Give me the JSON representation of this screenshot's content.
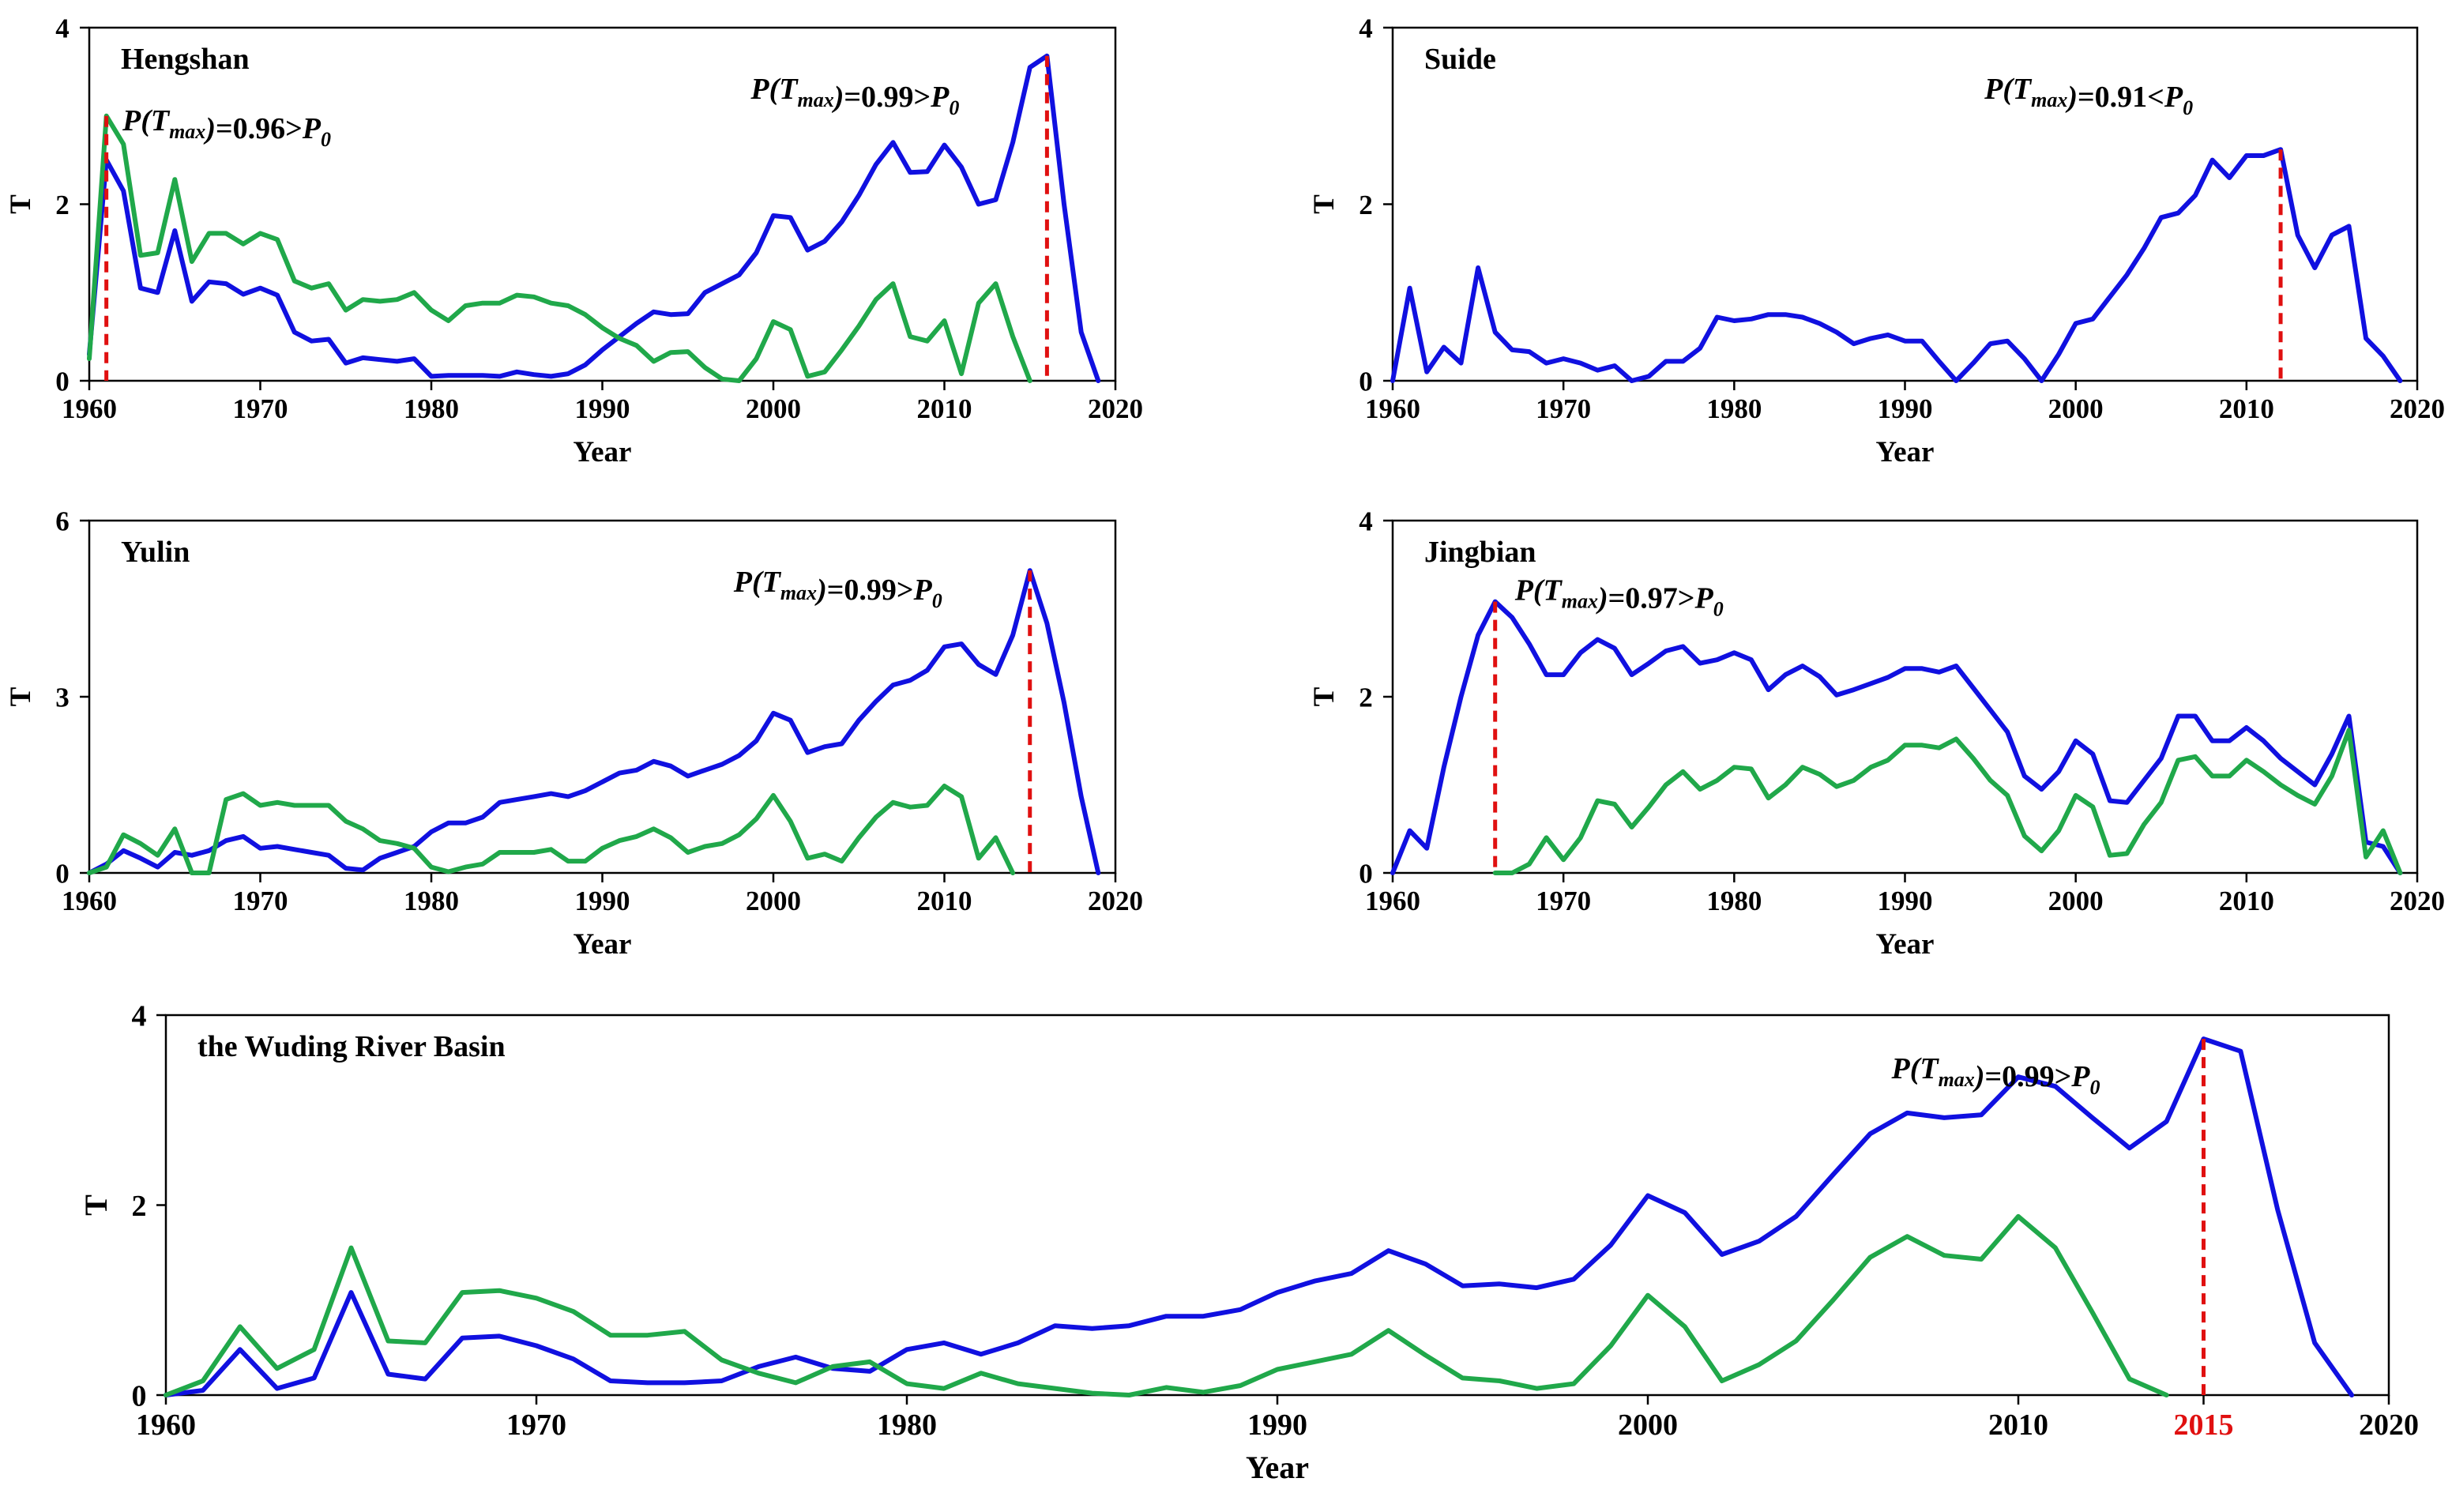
{
  "chart_data": [
    {
      "type": "line",
      "title": "Hengshan",
      "xlabel": "Year",
      "ylabel": "T",
      "xlim": [
        1960,
        2020
      ],
      "ylim": [
        0,
        4
      ],
      "xticks": [
        1960,
        1970,
        1980,
        1990,
        2000,
        2010,
        2020
      ],
      "yticks": [
        0,
        2,
        4
      ],
      "series": [
        {
          "name": "blue",
          "color": "#1010e0",
          "start": 1960,
          "values": [
            0.3,
            2.5,
            2.15,
            1.05,
            1.0,
            1.7,
            0.9,
            1.12,
            1.1,
            0.98,
            1.05,
            0.97,
            0.55,
            0.45,
            0.47,
            0.2,
            0.26,
            0.24,
            0.22,
            0.25,
            0.05,
            0.06,
            0.06,
            0.06,
            0.05,
            0.1,
            0.07,
            0.05,
            0.08,
            0.18,
            0.35,
            0.5,
            0.65,
            0.78,
            0.75,
            0.76,
            1.0,
            1.1,
            1.2,
            1.45,
            1.87,
            1.85,
            1.48,
            1.58,
            1.8,
            2.1,
            2.45,
            2.7,
            2.36,
            2.37,
            2.67,
            2.42,
            2.0,
            2.05,
            2.7,
            3.55,
            3.68,
            2.0,
            0.55,
            0.0
          ]
        },
        {
          "name": "green",
          "color": "#20a84a",
          "start": 1960,
          "values": [
            0.25,
            3.0,
            2.68,
            1.42,
            1.45,
            2.28,
            1.35,
            1.67,
            1.67,
            1.55,
            1.67,
            1.6,
            1.13,
            1.05,
            1.1,
            0.8,
            0.92,
            0.9,
            0.92,
            1.0,
            0.8,
            0.68,
            0.85,
            0.88,
            0.88,
            0.97,
            0.95,
            0.88,
            0.85,
            0.75,
            0.6,
            0.48,
            0.4,
            0.22,
            0.32,
            0.33,
            0.15,
            0.02,
            0.0,
            0.25,
            0.67,
            0.58,
            0.05,
            0.1,
            0.35,
            0.62,
            0.92,
            1.1,
            0.5,
            0.45,
            0.68,
            0.08,
            0.88,
            1.1,
            0.5,
            0.0
          ]
        }
      ],
      "markers": [
        {
          "year": 1961,
          "value": 3.0,
          "label": "=0.96>",
          "text": "P(Tmax)=0.96>P0"
        },
        {
          "year": 2016,
          "value": 3.68,
          "label": "=0.99>",
          "text": "P(Tmax)=0.99>P0"
        }
      ]
    },
    {
      "type": "line",
      "title": "Suide",
      "xlabel": "Year",
      "ylabel": "T",
      "xlim": [
        1960,
        2020
      ],
      "ylim": [
        0,
        4
      ],
      "xticks": [
        1960,
        1970,
        1980,
        1990,
        2000,
        2010,
        2020
      ],
      "yticks": [
        0,
        2,
        4
      ],
      "series": [
        {
          "name": "blue",
          "color": "#1010e0",
          "start": 1960,
          "values": [
            0.0,
            1.05,
            0.1,
            0.38,
            0.2,
            1.28,
            0.55,
            0.35,
            0.33,
            0.2,
            0.25,
            0.2,
            0.12,
            0.17,
            0.0,
            0.05,
            0.22,
            0.22,
            0.37,
            0.72,
            0.68,
            0.7,
            0.75,
            0.75,
            0.72,
            0.65,
            0.55,
            0.42,
            0.48,
            0.52,
            0.45,
            0.45,
            0.22,
            0.0,
            0.2,
            0.42,
            0.45,
            0.25,
            0.0,
            0.3,
            0.65,
            0.7,
            0.95,
            1.2,
            1.5,
            1.85,
            1.9,
            2.1,
            2.5,
            2.3,
            2.55,
            2.55,
            2.62,
            1.65,
            1.28,
            1.65,
            1.75,
            0.48,
            0.28,
            0.0
          ]
        }
      ],
      "markers": [
        {
          "year": 2012,
          "value": 2.62,
          "label": "=0.91<",
          "text": "P(Tmax)=0.91<P0"
        }
      ]
    },
    {
      "type": "line",
      "title": "Yulin",
      "xlabel": "Year",
      "ylabel": "T",
      "xlim": [
        1960,
        2020
      ],
      "ylim": [
        0,
        6
      ],
      "xticks": [
        1960,
        1970,
        1980,
        1990,
        2000,
        2010,
        2020
      ],
      "yticks": [
        0,
        3,
        6
      ],
      "series": [
        {
          "name": "blue",
          "color": "#1010e0",
          "start": 1960,
          "values": [
            0.0,
            0.15,
            0.38,
            0.25,
            0.1,
            0.35,
            0.3,
            0.38,
            0.55,
            0.62,
            0.42,
            0.45,
            0.4,
            0.35,
            0.3,
            0.08,
            0.05,
            0.25,
            0.35,
            0.45,
            0.7,
            0.85,
            0.85,
            0.95,
            1.2,
            1.25,
            1.3,
            1.35,
            1.3,
            1.4,
            1.55,
            1.7,
            1.75,
            1.9,
            1.82,
            1.65,
            1.75,
            1.85,
            2.0,
            2.25,
            2.72,
            2.6,
            2.05,
            2.15,
            2.2,
            2.6,
            2.92,
            3.2,
            3.28,
            3.45,
            3.85,
            3.9,
            3.55,
            3.38,
            4.05,
            5.15,
            4.25,
            2.9,
            1.3,
            0.0
          ]
        },
        {
          "name": "green",
          "color": "#20a84a",
          "start": 1960,
          "values": [
            0.0,
            0.1,
            0.65,
            0.5,
            0.3,
            0.75,
            0.0,
            0.0,
            1.25,
            1.35,
            1.15,
            1.2,
            1.15,
            1.15,
            1.15,
            0.88,
            0.75,
            0.55,
            0.5,
            0.42,
            0.1,
            0.02,
            0.1,
            0.15,
            0.35,
            0.35,
            0.35,
            0.4,
            0.2,
            0.2,
            0.42,
            0.55,
            0.62,
            0.75,
            0.6,
            0.35,
            0.45,
            0.5,
            0.65,
            0.92,
            1.32,
            0.88,
            0.25,
            0.32,
            0.2,
            0.6,
            0.95,
            1.2,
            1.12,
            1.15,
            1.48,
            1.3,
            0.25,
            0.6,
            0.0
          ]
        }
      ],
      "markers": [
        {
          "year": 2015,
          "value": 5.15,
          "label": "=0.99>",
          "text": "P(Tmax)=0.99>P0"
        }
      ]
    },
    {
      "type": "line",
      "title": "Jingbian",
      "xlabel": "Year",
      "ylabel": "T",
      "xlim": [
        1960,
        2020
      ],
      "ylim": [
        0,
        4
      ],
      "xticks": [
        1960,
        1970,
        1980,
        1990,
        2000,
        2010,
        2020
      ],
      "yticks": [
        0,
        2,
        4
      ],
      "series": [
        {
          "name": "blue",
          "color": "#1010e0",
          "start": 1960,
          "values": [
            0.0,
            0.48,
            0.28,
            1.2,
            2.0,
            2.7,
            3.08,
            2.9,
            2.6,
            2.25,
            2.25,
            2.5,
            2.65,
            2.55,
            2.25,
            2.38,
            2.52,
            2.57,
            2.38,
            2.42,
            2.5,
            2.42,
            2.08,
            2.25,
            2.35,
            2.23,
            2.02,
            2.08,
            2.15,
            2.22,
            2.32,
            2.32,
            2.28,
            2.35,
            2.1,
            1.85,
            1.6,
            1.1,
            0.95,
            1.15,
            1.5,
            1.35,
            0.82,
            0.8,
            1.05,
            1.3,
            1.78,
            1.78,
            1.5,
            1.5,
            1.65,
            1.5,
            1.3,
            1.15,
            1.0,
            1.35,
            1.78,
            0.35,
            0.3,
            0.0
          ]
        },
        {
          "name": "green",
          "color": "#20a84a",
          "start": 1966,
          "values": [
            0.0,
            0.0,
            0.1,
            0.4,
            0.15,
            0.4,
            0.82,
            0.78,
            0.52,
            0.75,
            1.0,
            1.15,
            0.95,
            1.05,
            1.2,
            1.18,
            0.85,
            1.0,
            1.2,
            1.12,
            0.98,
            1.05,
            1.2,
            1.28,
            1.45,
            1.45,
            1.42,
            1.52,
            1.3,
            1.05,
            0.88,
            0.42,
            0.25,
            0.48,
            0.88,
            0.75,
            0.2,
            0.22,
            0.55,
            0.8,
            1.28,
            1.32,
            1.1,
            1.1,
            1.28,
            1.15,
            1.0,
            0.88,
            0.78,
            1.1,
            1.62,
            0.18,
            0.48,
            0.0
          ]
        }
      ],
      "markers": [
        {
          "year": 1966,
          "value": 3.08,
          "label": "=0.97>",
          "text": "P(Tmax)=0.97>P0"
        }
      ]
    },
    {
      "type": "line",
      "title": "the Wuding River Basin",
      "xlabel": "Year",
      "ylabel": "T",
      "xlim": [
        1960,
        2020
      ],
      "ylim": [
        0,
        4
      ],
      "xticks": [
        1960,
        1970,
        1980,
        1990,
        2000,
        2010,
        2020
      ],
      "extra_xtick": "2015",
      "yticks": [
        0,
        2,
        4
      ],
      "series": [
        {
          "name": "blue",
          "color": "#1010e0",
          "start": 1960,
          "values": [
            0.0,
            0.05,
            0.48,
            0.07,
            0.18,
            1.08,
            0.22,
            0.17,
            0.6,
            0.62,
            0.52,
            0.38,
            0.15,
            0.13,
            0.13,
            0.15,
            0.3,
            0.4,
            0.28,
            0.25,
            0.48,
            0.55,
            0.43,
            0.55,
            0.73,
            0.7,
            0.73,
            0.83,
            0.83,
            0.9,
            1.08,
            1.2,
            1.28,
            1.52,
            1.38,
            1.15,
            1.17,
            1.13,
            1.22,
            1.58,
            2.1,
            1.92,
            1.48,
            1.62,
            1.88,
            2.32,
            2.75,
            2.97,
            2.92,
            2.95,
            3.35,
            3.25,
            2.92,
            2.6,
            2.88,
            3.75,
            3.62,
            1.95,
            0.55,
            0.0
          ]
        },
        {
          "name": "green",
          "color": "#20a84a",
          "start": 1960,
          "values": [
            0.0,
            0.15,
            0.72,
            0.28,
            0.48,
            1.55,
            0.57,
            0.55,
            1.08,
            1.1,
            1.02,
            0.88,
            0.63,
            0.63,
            0.67,
            0.37,
            0.23,
            0.13,
            0.3,
            0.35,
            0.12,
            0.07,
            0.23,
            0.12,
            0.07,
            0.02,
            0.0,
            0.08,
            0.03,
            0.1,
            0.27,
            0.35,
            0.43,
            0.68,
            0.42,
            0.18,
            0.15,
            0.07,
            0.12,
            0.52,
            1.05,
            0.72,
            0.15,
            0.32,
            0.57,
            1.0,
            1.45,
            1.67,
            1.47,
            1.43,
            1.88,
            1.55,
            0.87,
            0.17,
            0.0
          ]
        }
      ],
      "markers": [
        {
          "year": 2015,
          "value": 3.75,
          "label": "=0.99>",
          "text": "P(Tmax)=0.99>P0"
        }
      ]
    }
  ]
}
